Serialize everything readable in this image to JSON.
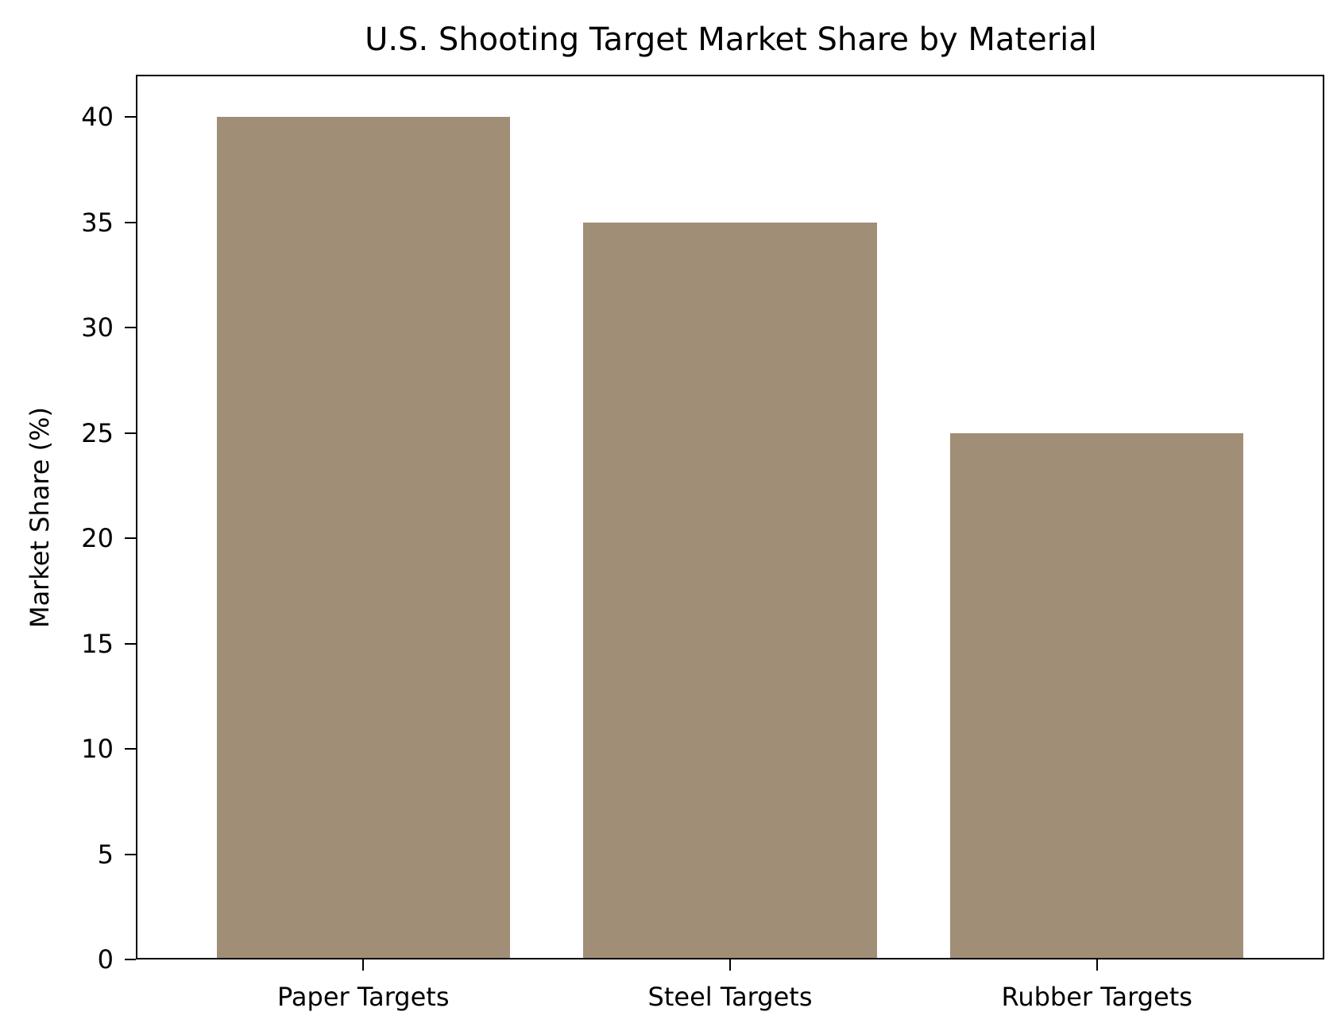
{
  "chart_data": {
    "type": "bar",
    "title": "U.S. Shooting Target Market Share by Material",
    "xlabel": "",
    "ylabel": "Market Share (%)",
    "categories": [
      "Paper Targets",
      "Steel Targets",
      "Rubber Targets"
    ],
    "values": [
      40,
      35,
      25
    ],
    "ylim": [
      0,
      42
    ],
    "yticks": [
      0,
      5,
      10,
      15,
      20,
      25,
      30,
      35,
      40
    ],
    "grid": false,
    "legend": null,
    "bar_color": "#a18e76"
  },
  "labels": {
    "title": "U.S. Shooting Target Market Share by Material",
    "ylabel": "Market Share (%)",
    "categories": [
      "Paper Targets",
      "Steel Targets",
      "Rubber Targets"
    ],
    "yticks": [
      "0",
      "5",
      "10",
      "15",
      "20",
      "25",
      "30",
      "35",
      "40"
    ]
  }
}
